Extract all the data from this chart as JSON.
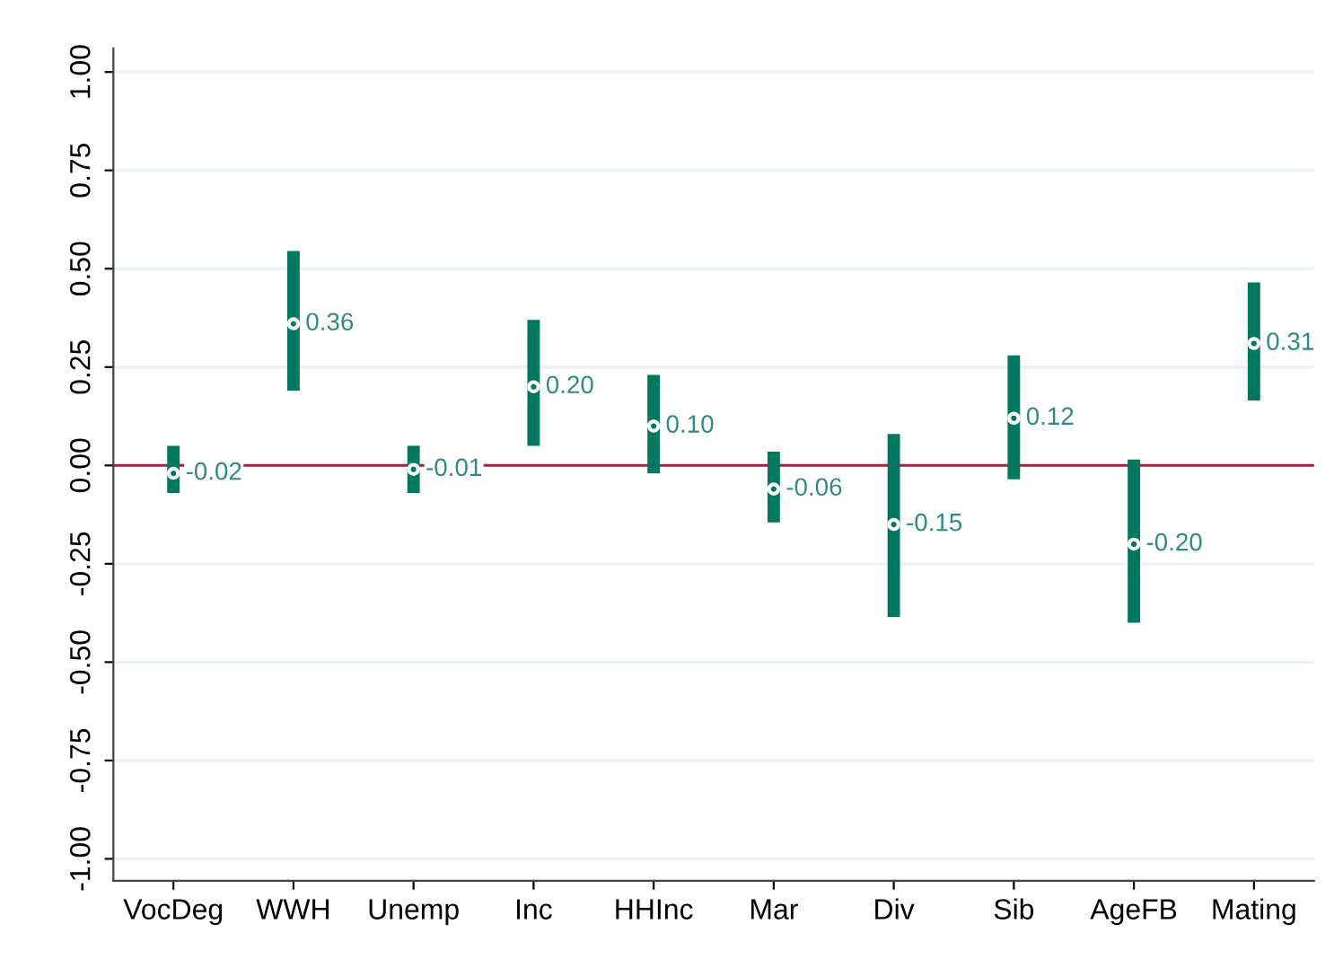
{
  "chart_data": {
    "type": "scatter",
    "categories": [
      "VocDeg",
      "WWH",
      "Unemp",
      "Inc",
      "HHInc",
      "Mar",
      "Div",
      "Sib",
      "AgeFB",
      "Mating"
    ],
    "series": [
      {
        "color": "#00785f",
        "values": [
          -0.02,
          0.36,
          -0.01,
          0.2,
          0.1,
          -0.06,
          -0.15,
          0.12,
          -0.2,
          0.31
        ],
        "value_labels": [
          "-0.02",
          "0.36",
          "-0.01",
          "0.20",
          "0.10",
          "-0.06",
          "-0.15",
          "0.12",
          "-0.20",
          "0.31"
        ],
        "errors": [
          [
            -0.07,
            0.05
          ],
          [
            0.19,
            0.545
          ],
          [
            -0.07,
            0.05
          ],
          [
            0.05,
            0.37
          ],
          [
            -0.02,
            0.23
          ],
          [
            -0.145,
            0.035
          ],
          [
            -0.385,
            0.08
          ],
          [
            -0.035,
            0.28
          ],
          [
            -0.4,
            0.015
          ],
          [
            0.165,
            0.465
          ]
        ]
      }
    ],
    "marker": "circle",
    "ylim": [
      -1.056,
      1.06
    ],
    "yticks": [
      {
        "value": -1,
        "label": "-1.00"
      },
      {
        "value": -0.75,
        "label": "-0.75"
      },
      {
        "value": -0.5,
        "label": "-0.50"
      },
      {
        "value": -0.25,
        "label": "-0.25"
      },
      {
        "value": 0,
        "label": "0.00"
      },
      {
        "value": 0.25,
        "label": "0.25"
      },
      {
        "value": 0.5,
        "label": "0.50"
      },
      {
        "value": 0.75,
        "label": "0.75"
      },
      {
        "value": 1,
        "label": "1.00"
      }
    ],
    "grid": "y",
    "ref_lines": [
      {
        "axis": "y",
        "value": 0,
        "color": "#c0143c"
      }
    ]
  }
}
